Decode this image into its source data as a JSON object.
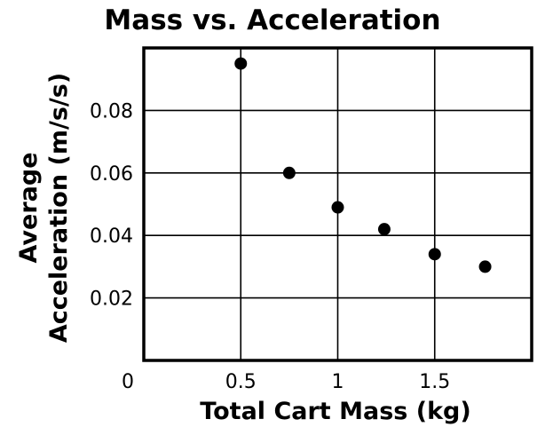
{
  "chart_data": {
    "type": "scatter",
    "title": "Mass vs. Acceleration",
    "xlabel": "Total Cart Mass (kg)",
    "ylabel_lines": [
      "Average",
      "Acceleration (m/s/s)"
    ],
    "xlim": [
      0,
      2
    ],
    "ylim": [
      0,
      0.1
    ],
    "x_ticks": [
      0.5,
      1,
      1.5
    ],
    "x_tick_labels": [
      "0.5",
      "1",
      "1.5"
    ],
    "y_ticks": [
      0.02,
      0.04,
      0.06,
      0.08
    ],
    "y_tick_labels": [
      "0.02",
      "0.04",
      "0.06",
      "0.08"
    ],
    "origin_label": "0",
    "grid": true,
    "points": [
      {
        "x": 0.5,
        "y": 0.095
      },
      {
        "x": 0.75,
        "y": 0.06
      },
      {
        "x": 1.0,
        "y": 0.049
      },
      {
        "x": 1.24,
        "y": 0.042
      },
      {
        "x": 1.5,
        "y": 0.034
      },
      {
        "x": 1.76,
        "y": 0.03
      }
    ]
  }
}
